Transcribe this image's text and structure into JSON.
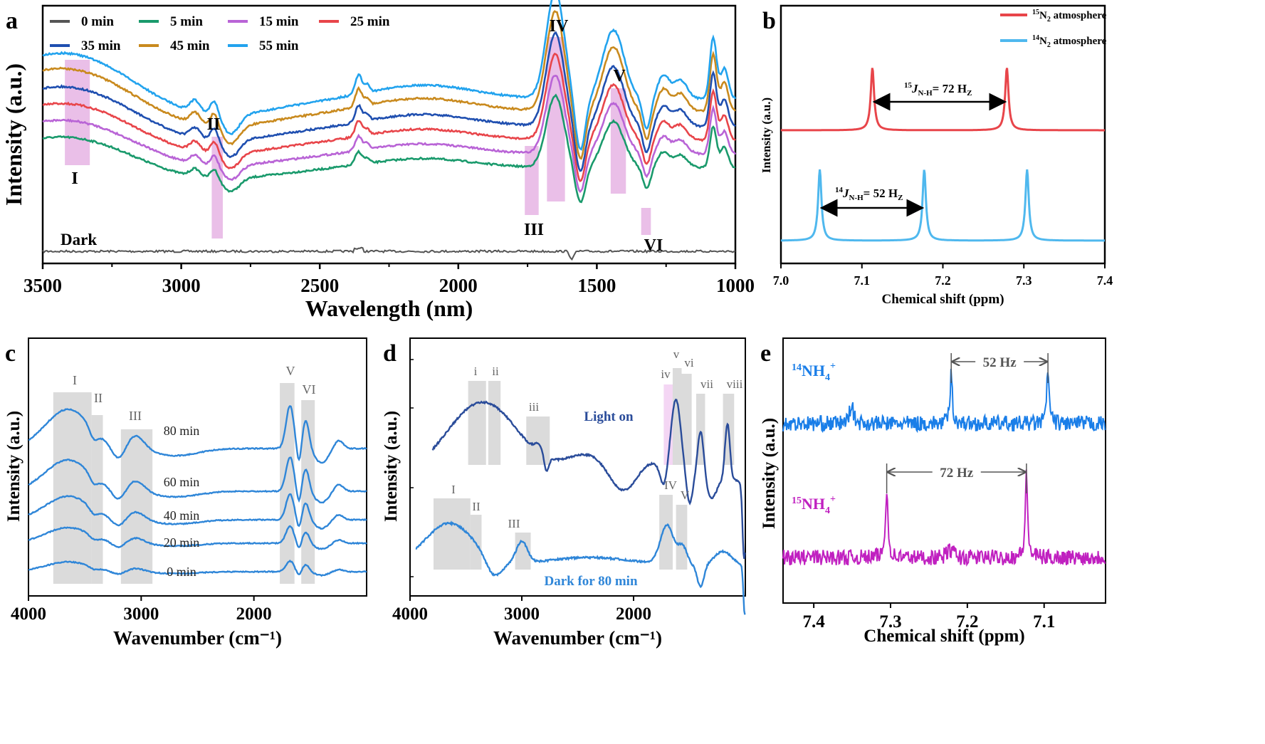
{
  "chart_data": [
    {
      "panel_letter": "a",
      "type": "line",
      "xlabel": "Wavelength (nm)",
      "ylabel": "Intensity (a.u.)",
      "xlim": [
        3500,
        1000
      ],
      "xticks": [
        "3500",
        "3000",
        "2500",
        "2000",
        "1500",
        "1000"
      ],
      "legend": [
        {
          "name": "0 min",
          "color": "#555555"
        },
        {
          "name": "5 min",
          "color": "#1a9a6c"
        },
        {
          "name": "15 min",
          "color": "#b964d6"
        },
        {
          "name": "25 min",
          "color": "#e8454a"
        },
        {
          "name": "35 min",
          "color": "#1f4fb0"
        },
        {
          "name": "45 min",
          "color": "#c98a1e"
        },
        {
          "name": "55 min",
          "color": "#22a3ee"
        }
      ],
      "dark_label": "Dark",
      "bands": [
        {
          "label": "I",
          "x": [
            3420,
            3330
          ]
        },
        {
          "label": "II",
          "x": [
            2890,
            2850
          ]
        },
        {
          "label": "III",
          "x": [
            1760,
            1710
          ]
        },
        {
          "label": "IV",
          "x": [
            1680,
            1615
          ]
        },
        {
          "label": "V",
          "x": [
            1450,
            1395
          ]
        },
        {
          "label": "VI",
          "x": [
            1340,
            1305
          ]
        }
      ]
    },
    {
      "panel_letter": "b",
      "type": "line",
      "xlabel": "Chemical shift (ppm)",
      "ylabel": "Intensity (a.u.)",
      "xlim": [
        7.0,
        7.4
      ],
      "xticks": [
        "7.0",
        "7.1",
        "7.2",
        "7.3",
        "7.4"
      ],
      "series": [
        {
          "name_iso": "15",
          "name_sym": "N",
          "name_sub": "2",
          "name_rest": " atmosphere",
          "color": "#e8454a",
          "peaks": [
            7.113,
            7.279
          ]
        },
        {
          "name_iso": "14",
          "name_sym": "N",
          "name_sub": "2",
          "name_rest": " atmosphere",
          "color": "#4fb8ee",
          "peaks": [
            7.048,
            7.177,
            7.304
          ]
        }
      ],
      "annotations": [
        {
          "iso": "15",
          "j": "J",
          "sub": "N-H",
          "rest": "= 72 H",
          "z": "Z"
        },
        {
          "iso": "14",
          "j": "J",
          "sub": "N-H",
          "rest": "= 52 H",
          "z": "Z"
        }
      ]
    },
    {
      "panel_letter": "c",
      "type": "line",
      "xlabel": "Wavenumber (cm⁻¹)",
      "ylabel": "Intensity (a.u.)",
      "xticks": [
        "4000",
        "3000",
        "2000"
      ],
      "curves": [
        "80 min",
        "60 min",
        "40 min",
        "20 min",
        "0 min"
      ],
      "bands": [
        "I",
        "II",
        "III",
        "V",
        "VI"
      ]
    },
    {
      "panel_letter": "d",
      "type": "line",
      "xlabel": "Wavenumber (cm⁻¹)",
      "ylabel": "Intensity (a.u.)",
      "xticks": [
        "4000",
        "3000",
        "2000"
      ],
      "curves": [
        "Light on",
        "Dark for 80 min"
      ],
      "bands_light": [
        "i",
        "ii",
        "iii",
        "iv",
        "v",
        "vi",
        "vii",
        "viii"
      ],
      "bands_dark": [
        "I",
        "II",
        "III",
        "IV",
        "V"
      ]
    },
    {
      "panel_letter": "e",
      "type": "line",
      "xlabel": "Chemical shift (ppm)",
      "ylabel": "Intensity (a.u.)",
      "xticks": [
        "7.4",
        "7.3",
        "7.2",
        "7.1"
      ],
      "series": [
        {
          "label_iso": "14",
          "label_main": "NH",
          "label_sub": "4",
          "label_sup": "+",
          "color": "#1a7ee8",
          "peaks": [
            7.351,
            7.221,
            7.095
          ],
          "j_label": "52 Hz"
        },
        {
          "label_iso": "15",
          "label_main": "NH",
          "label_sub": "4",
          "label_sup": "+",
          "color": "#c020c0",
          "peaks": [
            7.305,
            7.123
          ],
          "j_label": "72 Hz"
        }
      ]
    }
  ]
}
